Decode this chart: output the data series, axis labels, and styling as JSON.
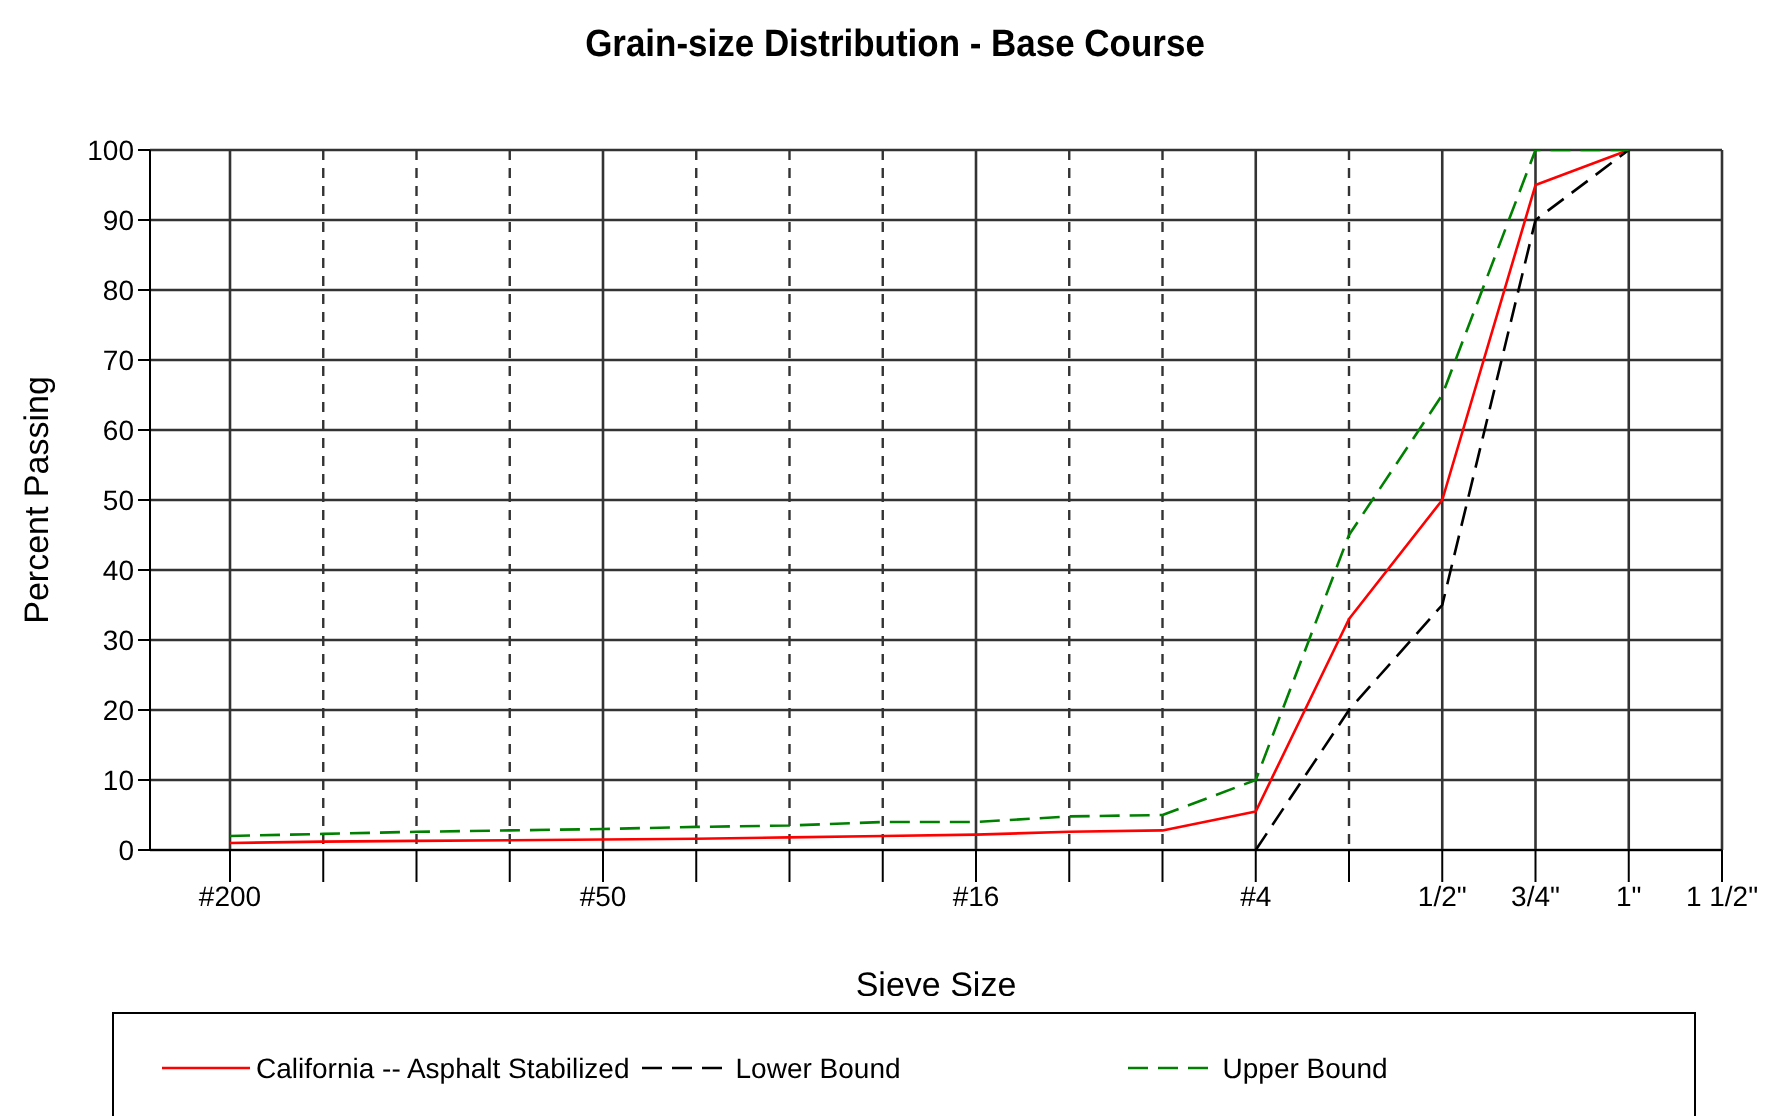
{
  "chart_data": {
    "type": "line",
    "title": "Grain-size Distribution - Base Course",
    "xlabel": "Sieve Size",
    "ylabel": "Percent Passing",
    "categories": [
      "#200",
      null,
      null,
      null,
      "#50",
      null,
      null,
      null,
      "#16",
      null,
      null,
      "#4",
      null,
      "1/2\"",
      "3/4\"",
      "1\"",
      "1 1/2\""
    ],
    "ylim": [
      0,
      100
    ],
    "yticks": [
      0,
      10,
      20,
      30,
      40,
      50,
      60,
      70,
      80,
      90,
      100
    ],
    "grid": true,
    "legend": "bottom",
    "marker": "none",
    "series": [
      {
        "name": "California -- Asphalt Stabilized",
        "color": "#ff0000",
        "line_style": "solid",
        "values": [
          1,
          1.2,
          1.3,
          1.4,
          1.5,
          1.6,
          1.8,
          2,
          2.2,
          2.6,
          2.8,
          5.5,
          33,
          50,
          95,
          100,
          null
        ]
      },
      {
        "name": "Lower Bound",
        "color": "#000000",
        "line_style": "dashed",
        "values": [
          null,
          null,
          null,
          null,
          null,
          null,
          null,
          null,
          null,
          null,
          null,
          0,
          20,
          35,
          90,
          100,
          null
        ]
      },
      {
        "name": "Upper Bound",
        "color": "#008000",
        "line_style": "dashed",
        "values": [
          2,
          2.3,
          2.6,
          2.8,
          3,
          3.3,
          3.5,
          4,
          4,
          4.8,
          5,
          10,
          45,
          65,
          100,
          100,
          null
        ]
      }
    ]
  }
}
